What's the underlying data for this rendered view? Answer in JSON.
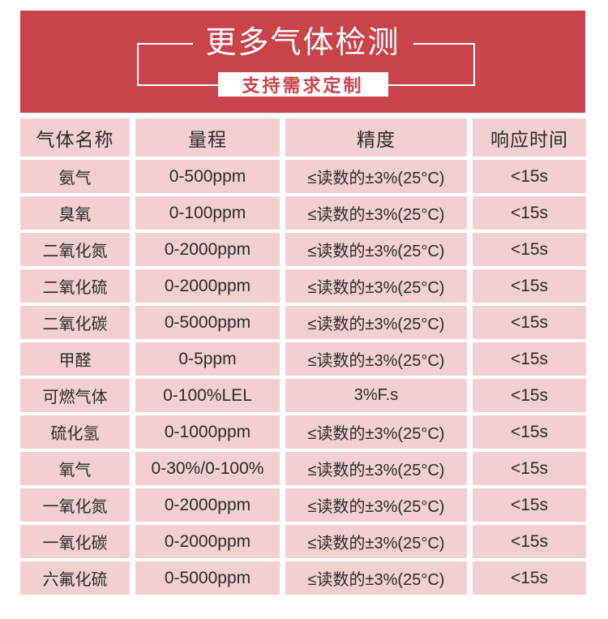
{
  "banner": {
    "title": "更多气体检测",
    "subtitle": "支持需求定制",
    "bg_color": "#c9434a",
    "subtitle_text_color": "#c9434a",
    "frame_border_color": "#ffffff"
  },
  "table": {
    "cell_bg_color": "#f2cfd0",
    "text_color": "#2c2c2c",
    "headers": [
      "气体名称",
      "量程",
      "精度",
      "响应时间"
    ],
    "rows": [
      [
        "氨气",
        "0-500ppm",
        "≤读数的±3%(25°C)",
        "<15s"
      ],
      [
        "臭氧",
        "0-100ppm",
        "≤读数的±3%(25°C)",
        "<15s"
      ],
      [
        "二氧化氮",
        "0-2000ppm",
        "≤读数的±3%(25°C)",
        "<15s"
      ],
      [
        "二氧化硫",
        "0-2000ppm",
        "≤读数的±3%(25°C)",
        "<15s"
      ],
      [
        "二氧化碳",
        "0-5000ppm",
        "≤读数的±3%(25°C)",
        "<15s"
      ],
      [
        "甲醛",
        "0-5ppm",
        "≤读数的±3%(25°C)",
        "<15s"
      ],
      [
        "可燃气体",
        "0-100%LEL",
        "3%F.s",
        "<15s"
      ],
      [
        "硫化氢",
        "0-1000ppm",
        "≤读数的±3%(25°C)",
        "<15s"
      ],
      [
        "氧气",
        "0-30%/0-100%",
        "≤读数的±3%(25°C)",
        "<15s"
      ],
      [
        "一氧化氮",
        "0-2000ppm",
        "≤读数的±3%(25°C)",
        "<15s"
      ],
      [
        "一氧化碳",
        "0-2000ppm",
        "≤读数的±3%(25°C)",
        "<15s"
      ],
      [
        "六氟化硫",
        "0-5000ppm",
        "≤读数的±3%(25°C)",
        "<15s"
      ]
    ]
  }
}
